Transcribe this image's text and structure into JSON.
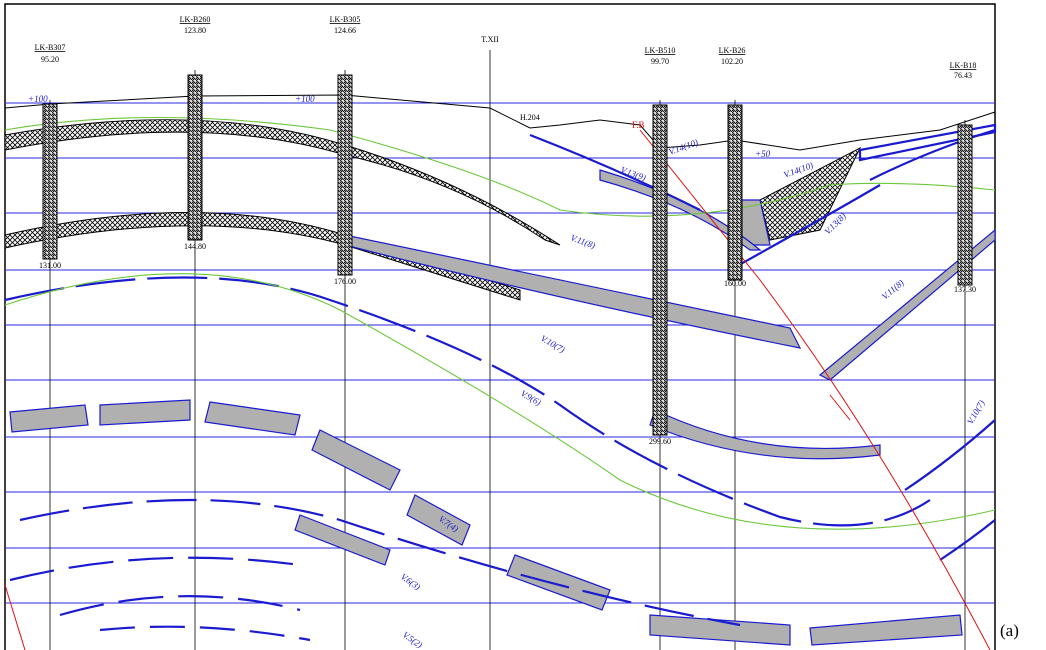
{
  "boreholes": [
    {
      "name": "LK-B307",
      "elevation": "95.20",
      "bottom": "131.00"
    },
    {
      "name": "LK-B260",
      "elevation": "123.80",
      "bottom": "144.80"
    },
    {
      "name": "LK-B305",
      "elevation": "124.66",
      "bottom": "176.00"
    },
    {
      "name": "LK-B510",
      "elevation": "99.70",
      "bottom": "299.60"
    },
    {
      "name": "LK-B26",
      "elevation": "102.20",
      "bottom": "160.00"
    },
    {
      "name": "LK-B18",
      "elevation": "76.43",
      "bottom": "137.30"
    }
  ],
  "traverse": "T.XII",
  "fault": "F.B",
  "point": "H.204",
  "levels": [
    "+100",
    "+100",
    "+50"
  ],
  "seams": [
    "V.14(10)",
    "V.13(9)",
    "V.14(10)",
    "V.13(8)",
    "V.11(8)",
    "V.11(8)",
    "V.10(7)",
    "V.9(6)",
    "V.10(7)",
    "V.7(4)",
    "V.6(3)",
    "V.5(2)"
  ],
  "figure_label": "(a)"
}
